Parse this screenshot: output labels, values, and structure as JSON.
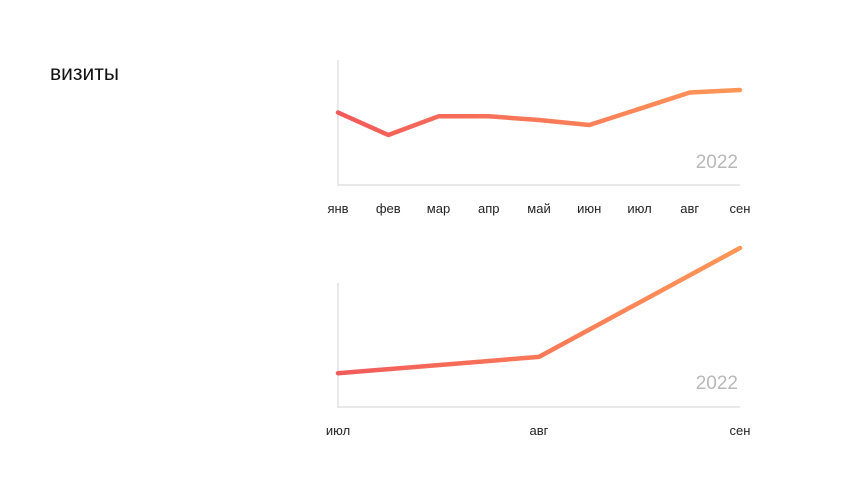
{
  "title": "визиты",
  "line_colors": {
    "start": "#f25a5a",
    "end": "#ff9757",
    "axis": "#e2e2e2"
  },
  "chart_data": [
    {
      "type": "line",
      "title": "",
      "annotation": "2022",
      "categories": [
        "янв",
        "фев",
        "мар",
        "апр",
        "май",
        "июн",
        "июл",
        "авг",
        "сен"
      ],
      "series": [
        {
          "values": [
            58,
            40,
            55,
            55,
            52,
            48,
            61,
            74,
            76
          ]
        }
      ],
      "ylim": [
        0,
        100
      ],
      "grid": false,
      "legend": "none"
    },
    {
      "type": "line",
      "title": "",
      "annotation": "2022",
      "categories": [
        "июл",
        "авг",
        "сен"
      ],
      "series": [
        {
          "values": [
            27,
            40,
            127
          ]
        }
      ],
      "ylim": [
        0,
        127
      ],
      "grid": false,
      "legend": "none"
    }
  ]
}
